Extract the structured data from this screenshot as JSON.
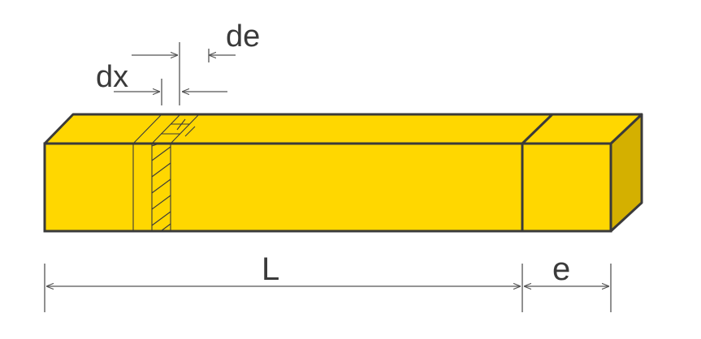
{
  "labels": {
    "dx": "dx",
    "de": "de",
    "L": "L",
    "e": "e"
  },
  "colors": {
    "bar_front": "#FFD700",
    "bar_top": "#FFD700",
    "bar_side": "#D4B000",
    "outline": "#3a3a3a",
    "dimension_line": "#555555",
    "text": "#3a3a3a"
  }
}
